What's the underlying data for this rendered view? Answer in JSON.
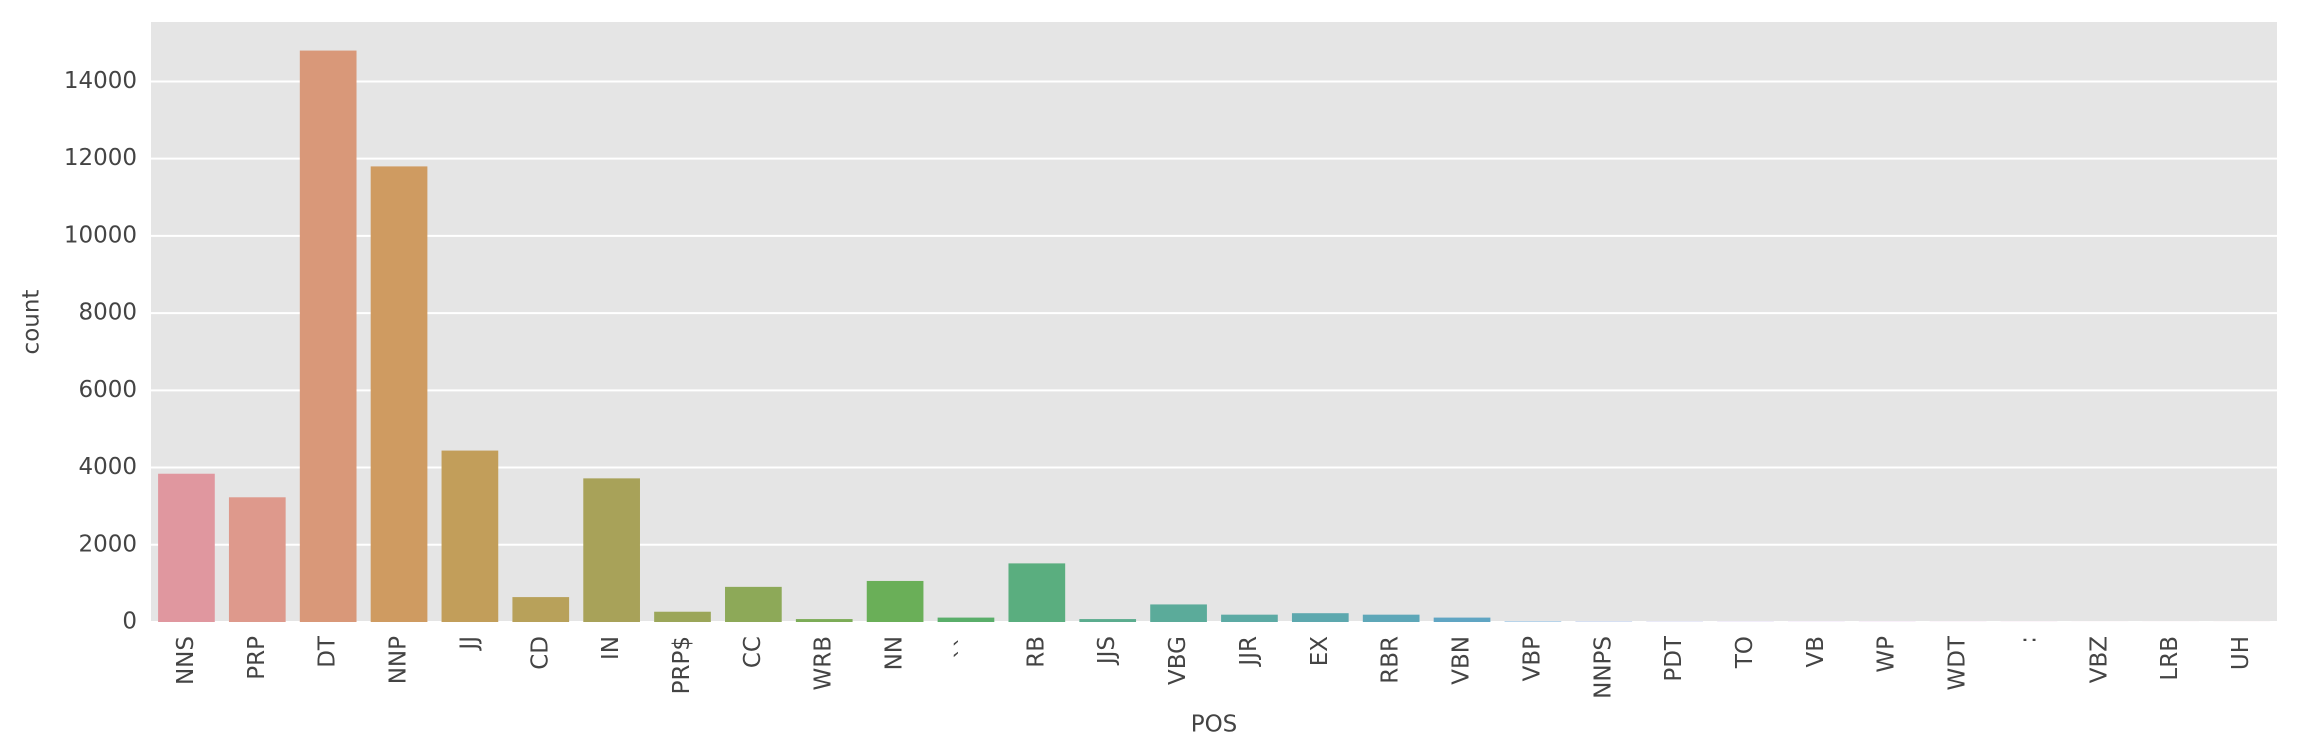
{
  "chart_data": {
    "type": "bar",
    "x_label": "POS",
    "y_label": "count",
    "categories": [
      "NNS",
      "PRP",
      "DT",
      "NNP",
      "JJ",
      "CD",
      "IN",
      "PRP$",
      "CC",
      "WRB",
      "NN",
      "``",
      "RB",
      "JJS",
      "VBG",
      "JJR",
      "EX",
      "RBR",
      "VBN",
      "VBP",
      "NNPS",
      "PDT",
      "TO",
      "VB",
      "WP",
      "WDT",
      ":",
      "VBZ",
      "LRB",
      "UH"
    ],
    "values": [
      3840,
      3230,
      14800,
      11800,
      4440,
      645,
      3720,
      266,
      910,
      76,
      1063,
      114,
      1518,
      76,
      455,
      190,
      228,
      190,
      114,
      12,
      8,
      5,
      4,
      3,
      3,
      2,
      2,
      1,
      1,
      1
    ],
    "colors": [
      "#e0979f",
      "#de998c",
      "#d99879",
      "#cf9b61",
      "#c29e5a",
      "#b8a15a",
      "#a8a259",
      "#9ba659",
      "#8da958",
      "#7cac57",
      "#6aaf58",
      "#5aae6a",
      "#5aae7f",
      "#5bac8e",
      "#5bab9a",
      "#5caaa4",
      "#5da8ae",
      "#5ea7b8",
      "#60a5c3",
      "#66a1d1",
      "#7d9ad9",
      "#9592de",
      "#a98be0",
      "#bb84df",
      "#cb7fd8",
      "#d57ccc",
      "#dc7bbe",
      "#df7eb0",
      "#e083a3",
      "#e08b98"
    ],
    "ylim": [
      0,
      15540
    ],
    "yticks": [
      0,
      2000,
      4000,
      6000,
      8000,
      10000,
      12000,
      14000
    ],
    "grid": true
  }
}
